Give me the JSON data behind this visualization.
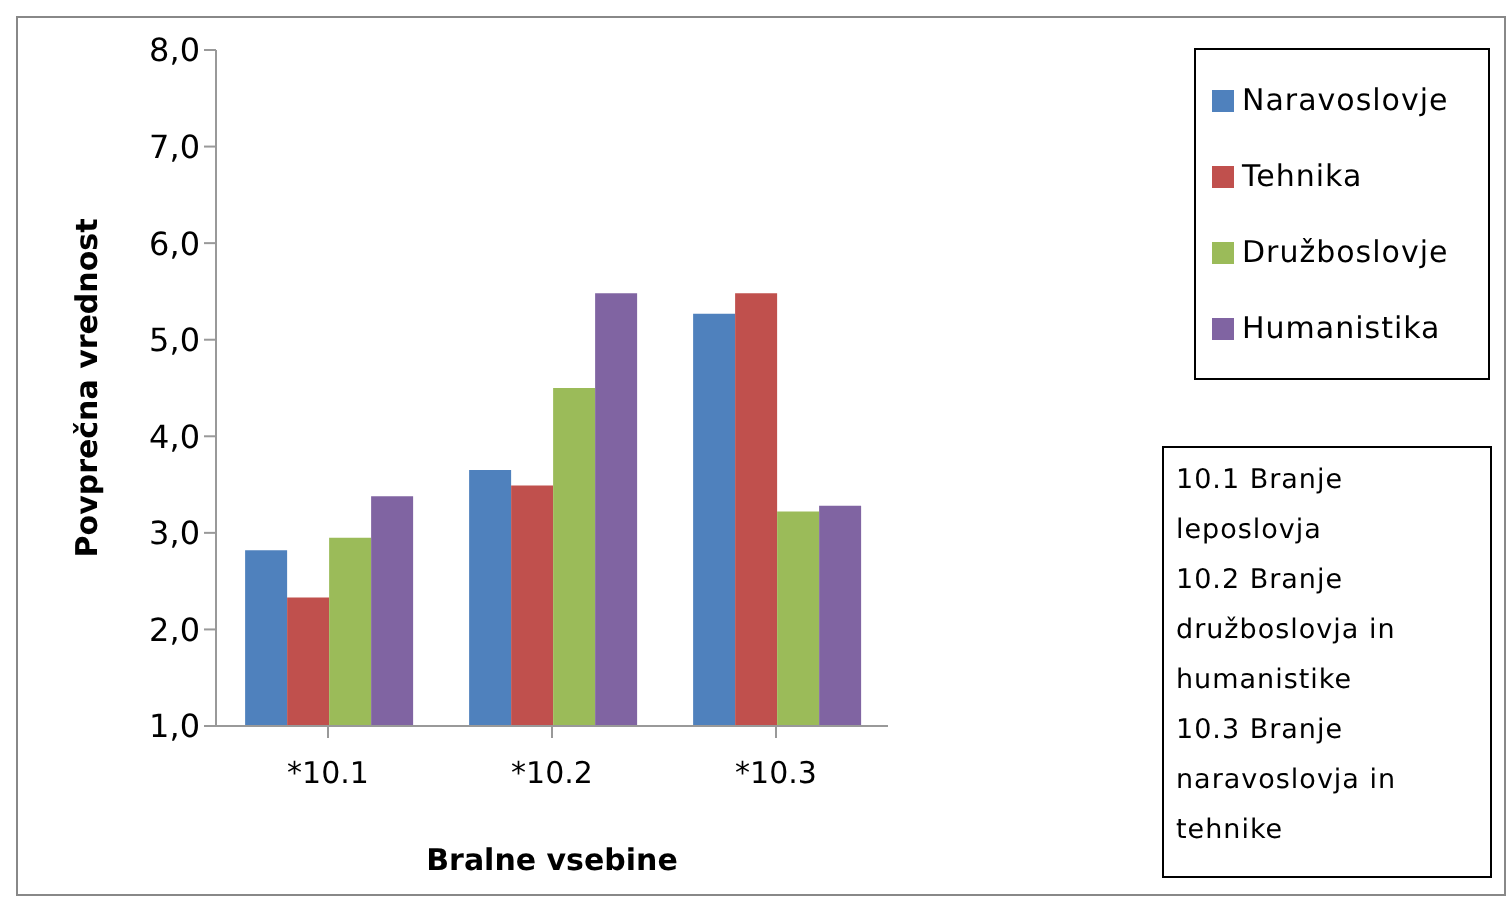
{
  "chart_data": {
    "type": "bar",
    "xlabel": "Bralne vsebine",
    "ylabel": "Povprečna vrednost",
    "categories": [
      "*10.1",
      "*10.2",
      "*10.3"
    ],
    "series": [
      {
        "name": "Naravoslovje",
        "color": "#4f81bd",
        "values": [
          2.82,
          3.65,
          5.27
        ]
      },
      {
        "name": "Tehnika",
        "color": "#c0504d",
        "values": [
          2.33,
          3.49,
          5.48
        ]
      },
      {
        "name": "Družboslovje",
        "color": "#9bbb59",
        "values": [
          2.95,
          4.5,
          3.22
        ]
      },
      {
        "name": "Humanistika",
        "color": "#8064a2",
        "values": [
          3.38,
          5.48,
          3.28
        ]
      }
    ],
    "ylim": [
      1,
      8
    ],
    "yticks": [
      {
        "value": 1,
        "label": "1,0"
      },
      {
        "value": 2,
        "label": "2,0"
      },
      {
        "value": 3,
        "label": "3,0"
      },
      {
        "value": 4,
        "label": "4,0"
      },
      {
        "value": 5,
        "label": "5,0"
      },
      {
        "value": 6,
        "label": "6,0"
      },
      {
        "value": 7,
        "label": "7,0"
      },
      {
        "value": 8,
        "label": "8,0"
      }
    ],
    "legend": "top right",
    "grid": false,
    "annotations": [
      "10.1 Branje leposlovja",
      "10.2 Branje družboslovja in humanistike",
      "10.3 Branje naravoslovja in tehnike"
    ]
  }
}
